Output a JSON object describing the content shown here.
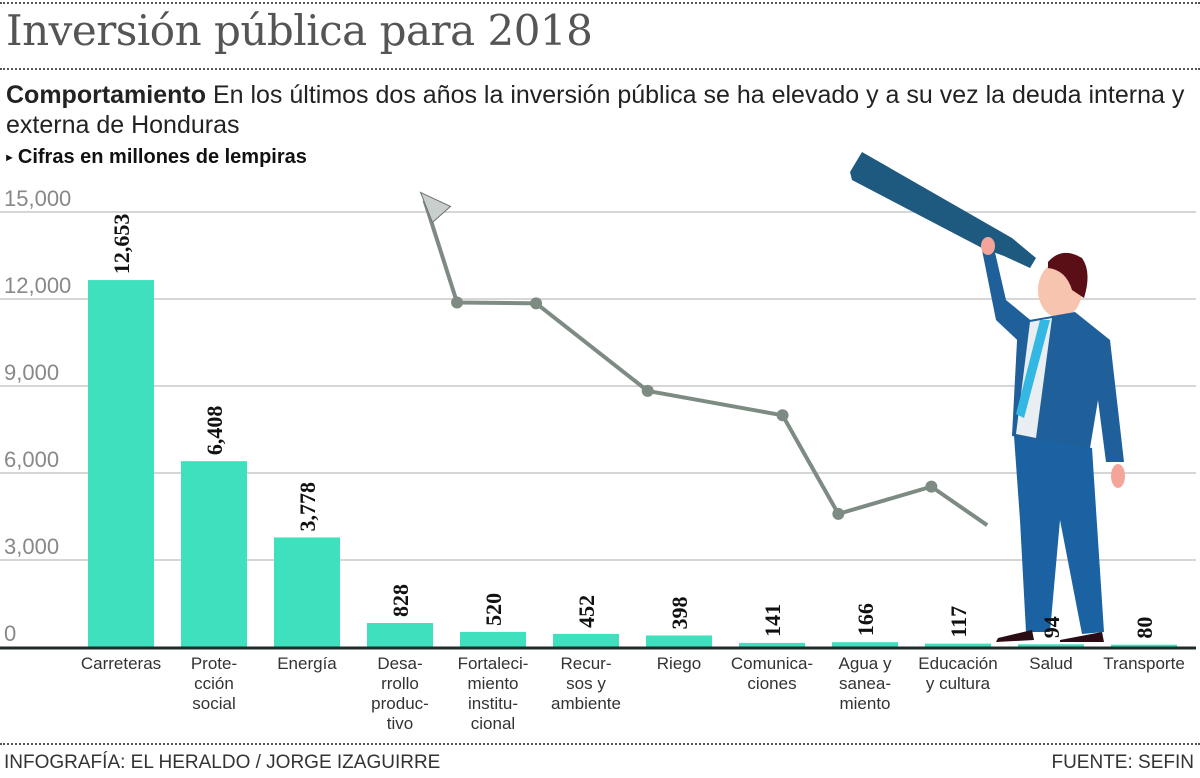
{
  "header": {
    "title": "Inversión pública para 2018",
    "subtitle_bold": "Comportamiento",
    "subtitle_text": " En los últimos dos años la inversión pública se ha elevado y a su vez la deuda interna y externa de Honduras",
    "unit_note": "Cifras en millones de lempiras"
  },
  "footer": {
    "credit": "INFOGRAFÍA: EL HERALDO / JORGE IZAGUIRRE",
    "source": "FUENTE: SEFIN"
  },
  "colors": {
    "bar": "#3fe0bd",
    "trend_line": "#7d8b83",
    "suit": "#1f5f9a",
    "telescope": "#1e5a80",
    "tie": "#33b7e3"
  },
  "chart_data": {
    "type": "bar",
    "title": "Inversión pública para 2018",
    "xlabel": "",
    "ylabel": "Cifras en millones de lempiras",
    "ylim": [
      0,
      15000
    ],
    "yticks": [
      0,
      3000,
      6000,
      9000,
      12000,
      15000
    ],
    "ytick_labels": [
      "0",
      "3,000",
      "6,000",
      "9,000",
      "12,000",
      "15,000"
    ],
    "grid": true,
    "categories": [
      "Carreteras",
      "Prote-\ncción\nsocial",
      "Energía",
      "Desa-\nrrollo\nproduc-\ntivo",
      "Fortaleci-\nmiento\ninstitu-\ncional",
      "Recur-\nsos y\nambiente",
      "Riego",
      "Comunica-\nciones",
      "Agua y\nsanea-\nmiento",
      "Educación\ny cultura",
      "Salud",
      "Transporte"
    ],
    "values": [
      12653,
      6408,
      3778,
      828,
      520,
      452,
      398,
      141,
      166,
      117,
      94,
      80
    ],
    "value_labels": [
      "12,653",
      "6,408",
      "3,778",
      "828",
      "520",
      "452",
      "398",
      "141",
      "166",
      "117",
      "94",
      "80"
    ],
    "decorative_trend_line": {
      "description": "illustrative upward trend arrow (rising toward upper-left)",
      "points": [
        [
          4.5,
          15400
        ],
        [
          4.85,
          11880
        ],
        [
          5.7,
          11850
        ],
        [
          6.9,
          8830
        ],
        [
          8.35,
          7990
        ],
        [
          8.95,
          4590
        ],
        [
          9.95,
          5530
        ],
        [
          10.55,
          4200
        ]
      ]
    }
  }
}
